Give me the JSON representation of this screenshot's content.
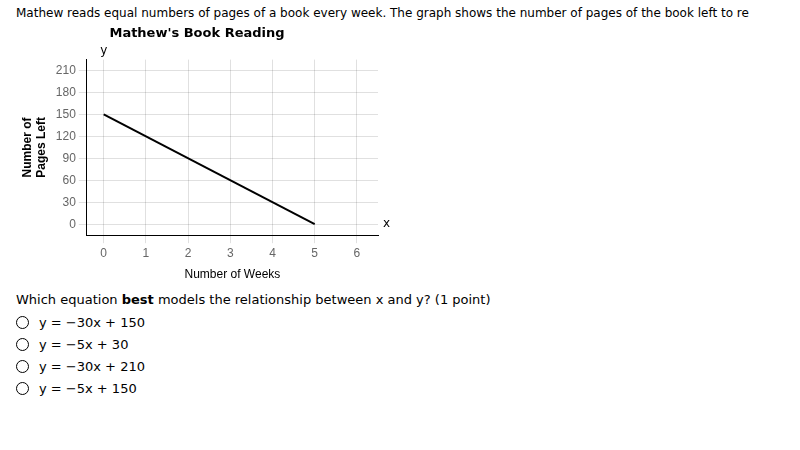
{
  "chart_data": {
    "type": "line",
    "title": "Mathew's Book Reading",
    "header": "Mathew reads equal numbers of pages of a book every week. The graph shows the number of pages of the book left to re",
    "xlabel": "Number of Weeks",
    "ylabel": [
      "Number of",
      "Pages Left"
    ],
    "axis_end_labels": {
      "x": "x",
      "y": "y"
    },
    "x": [
      0,
      5
    ],
    "values": [
      150,
      0
    ],
    "color": "#000000",
    "xlim": [
      -0.4,
      6.5
    ],
    "xticks": [
      0,
      1,
      2,
      3,
      4,
      5,
      6
    ],
    "ylim": [
      -15,
      225
    ],
    "yticks": [
      0,
      30,
      60,
      90,
      120,
      150,
      180,
      210
    ],
    "grid": true,
    "question_parts": [
      "Which equation ",
      "best",
      " models the relationship between x and y? (1 point)"
    ],
    "options": [
      "y = −30x + 150",
      "y = −5x + 30",
      "y = −30x + 210",
      "y = −5x + 150"
    ]
  }
}
